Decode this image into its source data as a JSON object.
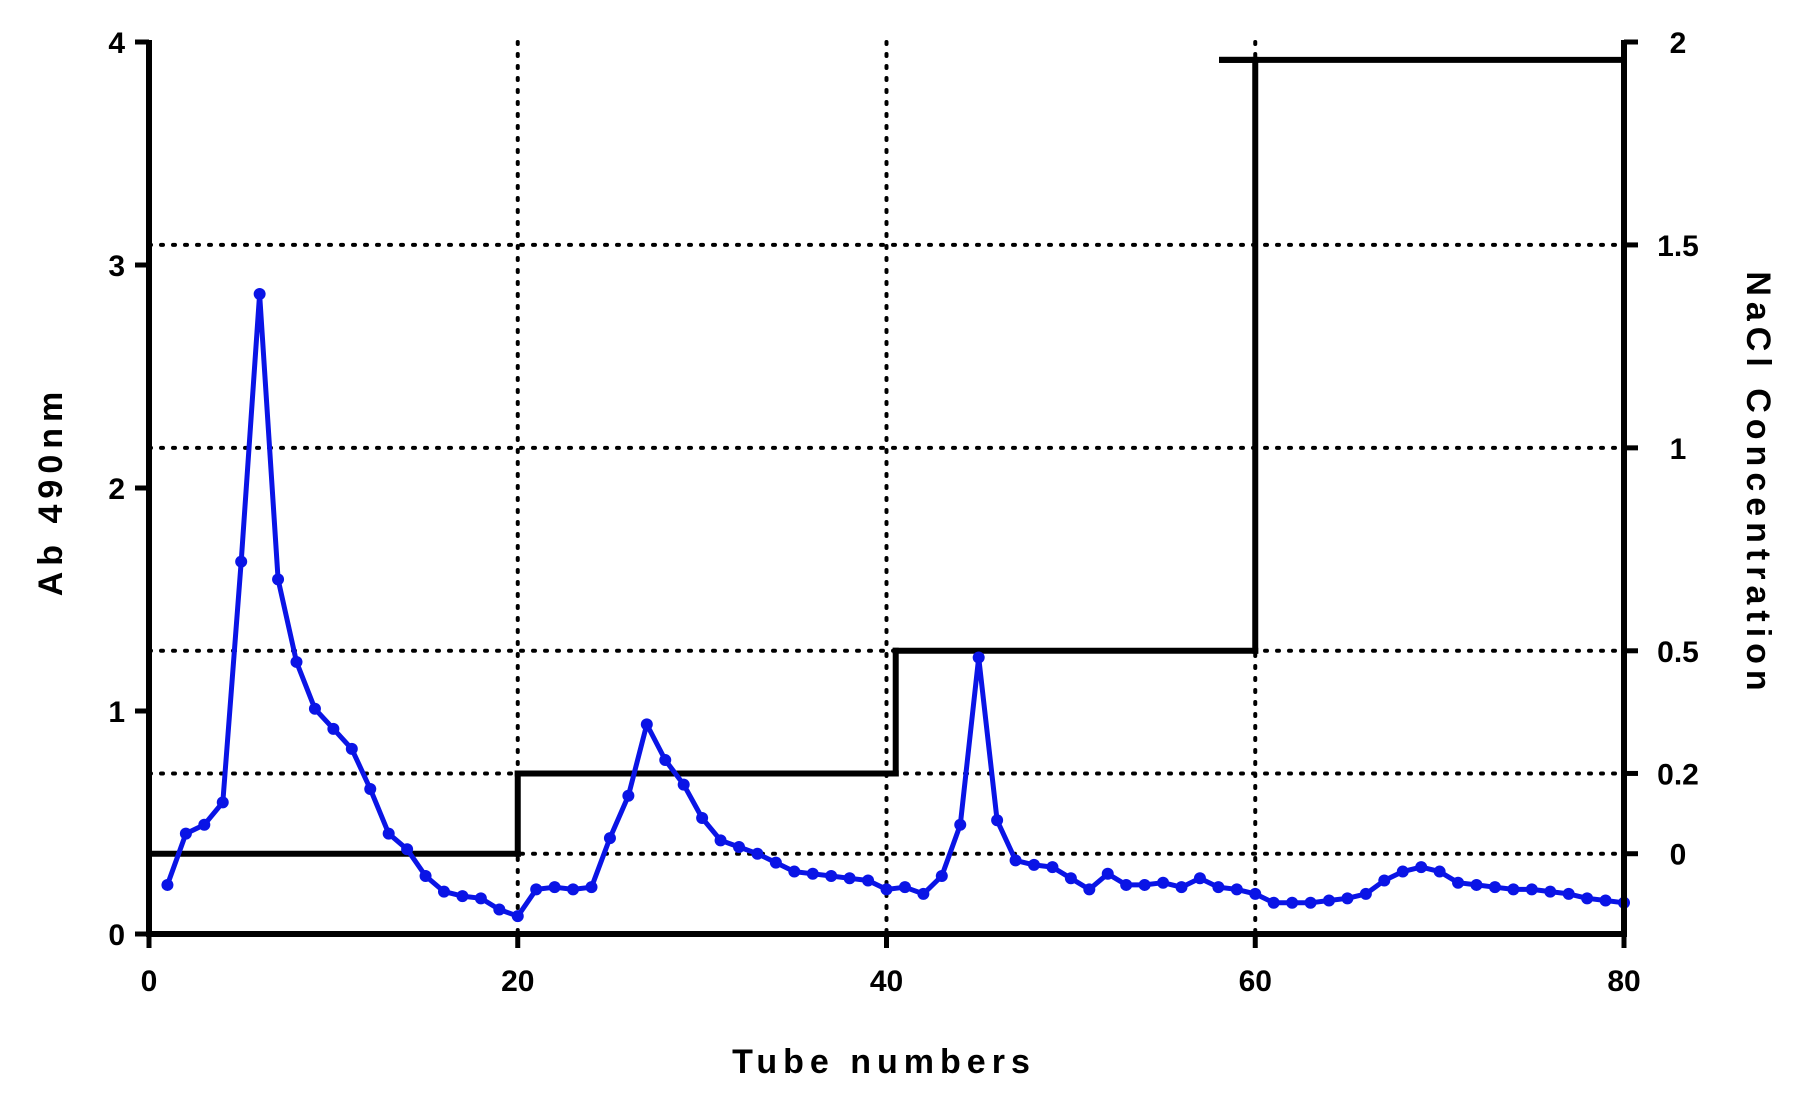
{
  "chart_data": {
    "type": "line",
    "xlabel": "Tube numbers",
    "ylabel": "Ab 490nm",
    "y2label": "NaCl Concentration",
    "xlim": [
      0,
      80
    ],
    "ylim": [
      0,
      4
    ],
    "x_ticks": [
      0,
      20,
      40,
      60,
      80
    ],
    "y_ticks": [
      0,
      1,
      2,
      3,
      4
    ],
    "y2_ticks": [
      {
        "label": "0",
        "y": 0.36
      },
      {
        "label": "0.2",
        "y": 0.72
      },
      {
        "label": "0.5",
        "y": 1.27
      },
      {
        "label": "1",
        "y": 2.18
      },
      {
        "label": "1.5",
        "y": 3.09
      },
      {
        "label": "2",
        "y": 4.0
      }
    ],
    "grid": "dotted lines at x = 20, 40, 60 and at NaCl levels 0, 0.2, 0.5, 1",
    "colors": {
      "absorbance": "#0a14e6",
      "nacl": "#000000",
      "axes": "#000000"
    },
    "series": [
      {
        "role": "absorbance",
        "x": [
          1,
          2,
          3,
          4,
          5,
          6,
          7,
          8,
          9,
          10,
          11,
          12,
          13,
          14,
          15,
          16,
          17,
          18,
          19,
          20,
          21,
          22,
          23,
          24,
          25,
          26,
          27,
          28,
          29,
          30,
          31,
          32,
          33,
          34,
          35,
          36,
          37,
          38,
          39,
          40,
          41,
          42,
          43,
          44,
          45,
          46,
          47,
          48,
          49,
          50,
          51,
          52,
          53,
          54,
          55,
          56,
          57,
          58,
          59,
          60,
          61,
          62,
          63,
          64,
          65,
          66,
          67,
          68,
          69,
          70,
          71,
          72,
          73,
          74,
          75,
          76,
          77,
          78,
          79,
          80
        ],
        "values": [
          0.22,
          0.45,
          0.49,
          0.59,
          1.67,
          2.87,
          1.59,
          1.22,
          1.01,
          0.92,
          0.83,
          0.65,
          0.45,
          0.38,
          0.26,
          0.19,
          0.17,
          0.16,
          0.11,
          0.08,
          0.2,
          0.21,
          0.2,
          0.21,
          0.43,
          0.62,
          0.94,
          0.78,
          0.67,
          0.52,
          0.42,
          0.39,
          0.36,
          0.32,
          0.28,
          0.27,
          0.26,
          0.25,
          0.24,
          0.2,
          0.21,
          0.18,
          0.26,
          0.49,
          1.24,
          0.51,
          0.33,
          0.31,
          0.3,
          0.25,
          0.2,
          0.27,
          0.22,
          0.22,
          0.23,
          0.21,
          0.25,
          0.21,
          0.2,
          0.18,
          0.14,
          0.14,
          0.14,
          0.15,
          0.16,
          0.18,
          0.24,
          0.28,
          0.3,
          0.28,
          0.23,
          0.22,
          0.21,
          0.2,
          0.2,
          0.19,
          0.18,
          0.16,
          0.15,
          0.14
        ]
      },
      {
        "role": "nacl",
        "type": "step",
        "points": [
          [
            0,
            0.36
          ],
          [
            20,
            0.36
          ],
          [
            20,
            0.72
          ],
          [
            40.5,
            0.72
          ],
          [
            40.5,
            1.27
          ],
          [
            60,
            1.27
          ],
          [
            60,
            3.92
          ],
          [
            58.2,
            3.92
          ],
          [
            80,
            3.92
          ]
        ]
      }
    ]
  }
}
